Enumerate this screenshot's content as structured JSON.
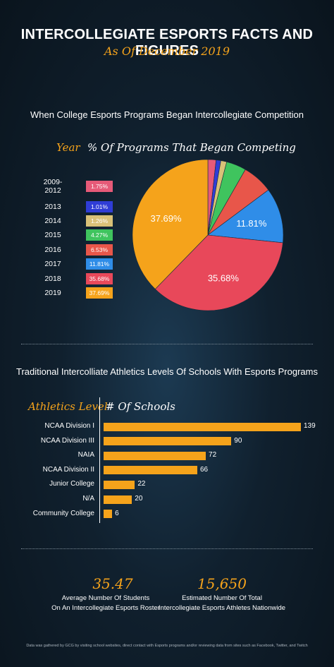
{
  "header": {
    "title": "INTERCOLLEGIATE ESPORTS FACTS AND FIGURES",
    "subtitle": "As Of December 2019"
  },
  "pie_section": {
    "title": "When College Esports Programs Began Intercollegiate Competition",
    "year_header": "Year",
    "pct_header": "% Of Programs That Began Competing"
  },
  "bar_section": {
    "title": "Traditional Intercolliate Athletics Levels Of Schools With Esports Programs",
    "level_header": "Athletics Level",
    "count_header": "# Of Schools"
  },
  "stats": [
    {
      "value": "35.47",
      "label_line1": "Average Number Of Students",
      "label_line2": "On An Intercollegiate Esports Roster"
    },
    {
      "value": "15,650",
      "label_line1": "Estimated Number Of Total",
      "label_line2": "Intercollegiate Esports Athletes Nationwide"
    }
  ],
  "footnote": "Data was gathered by GCG by visiting school websites, direct contact with Esports programs and/or reviewing data from sites such as Facebook, Twitter, and Twitch",
  "chart_data": [
    {
      "type": "pie",
      "categories": [
        "2009-2012",
        "2013",
        "2014",
        "2015",
        "2016",
        "2017",
        "2018",
        "2019"
      ],
      "values": [
        1.75,
        1.01,
        1.26,
        4.27,
        6.53,
        11.81,
        35.68,
        37.69
      ],
      "value_labels": [
        "1.75%",
        "1.01%",
        "1.26%",
        "4.27%",
        "6.53%",
        "11.81%",
        "35.68%",
        "37.69%"
      ],
      "colors": [
        "#e65a78",
        "#2f3dd6",
        "#d9c178",
        "#3fc45e",
        "#e8564a",
        "#2f8de8",
        "#e8485a",
        "#f5a31b"
      ]
    },
    {
      "type": "bar",
      "orientation": "horizontal",
      "categories": [
        "NCAA Division I",
        "NCAA Division III",
        "NAIA",
        "NCAA Division II",
        "Junior College",
        "N/A",
        "Community College"
      ],
      "values": [
        139,
        90,
        72,
        66,
        22,
        20,
        6
      ],
      "color": "#f5a31b"
    }
  ]
}
